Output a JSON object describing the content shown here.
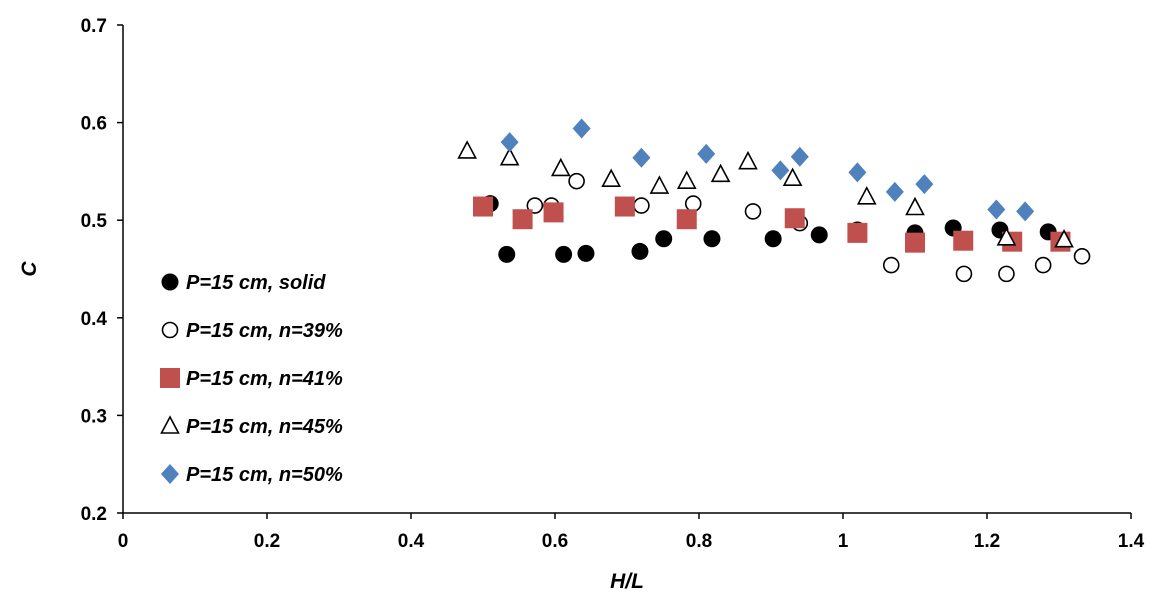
{
  "chart_data": {
    "type": "scatter",
    "title": "",
    "xlabel": "H/L",
    "ylabel": "C",
    "xlim": [
      0,
      1.4
    ],
    "ylim": [
      0.2,
      0.7
    ],
    "xticks": [
      "0",
      "0.2",
      "0.4",
      "0.6",
      "0.8",
      "1",
      "1.2",
      "1.4"
    ],
    "yticks": [
      "0.2",
      "0.3",
      "0.4",
      "0.5",
      "0.6",
      "0.7"
    ],
    "xtick_values": [
      0,
      0.2,
      0.4,
      0.6,
      0.8,
      1.0,
      1.2,
      1.4
    ],
    "ytick_values": [
      0.2,
      0.3,
      0.4,
      0.5,
      0.6,
      0.7
    ],
    "grid": false,
    "legend_position": "left",
    "series": [
      {
        "name": "P=15 cm, solid",
        "marker": "circle-filled",
        "color": "#000000",
        "points": [
          [
            0.51,
            0.517
          ],
          [
            0.533,
            0.465
          ],
          [
            0.612,
            0.465
          ],
          [
            0.643,
            0.466
          ],
          [
            0.718,
            0.468
          ],
          [
            0.751,
            0.481
          ],
          [
            0.818,
            0.481
          ],
          [
            0.903,
            0.481
          ],
          [
            0.967,
            0.485
          ],
          [
            1.02,
            0.49
          ],
          [
            1.1,
            0.487
          ],
          [
            1.153,
            0.492
          ],
          [
            1.218,
            0.49
          ],
          [
            1.285,
            0.488
          ]
        ]
      },
      {
        "name": "P=15 cm, n=39%",
        "marker": "circle-open",
        "color": "#000000",
        "points": [
          [
            0.572,
            0.515
          ],
          [
            0.595,
            0.515
          ],
          [
            0.63,
            0.54
          ],
          [
            0.72,
            0.515
          ],
          [
            0.792,
            0.517
          ],
          [
            0.875,
            0.509
          ],
          [
            0.94,
            0.497
          ],
          [
            1.067,
            0.454
          ],
          [
            1.168,
            0.445
          ],
          [
            1.227,
            0.445
          ],
          [
            1.278,
            0.454
          ],
          [
            1.332,
            0.463
          ]
        ]
      },
      {
        "name": "P=15 cm, n=41%",
        "marker": "square-filled",
        "color": "#C0504D",
        "points": [
          [
            0.5,
            0.514
          ],
          [
            0.555,
            0.501
          ],
          [
            0.598,
            0.508
          ],
          [
            0.697,
            0.514
          ],
          [
            0.783,
            0.501
          ],
          [
            0.933,
            0.502
          ],
          [
            1.02,
            0.487
          ],
          [
            1.1,
            0.477
          ],
          [
            1.167,
            0.479
          ],
          [
            1.235,
            0.478
          ],
          [
            1.302,
            0.478
          ]
        ]
      },
      {
        "name": "P=15 cm, n=45%",
        "marker": "triangle-open",
        "color": "#000000",
        "points": [
          [
            0.478,
            0.571
          ],
          [
            0.537,
            0.564
          ],
          [
            0.608,
            0.553
          ],
          [
            0.678,
            0.542
          ],
          [
            0.745,
            0.535
          ],
          [
            0.783,
            0.54
          ],
          [
            0.83,
            0.547
          ],
          [
            0.868,
            0.56
          ],
          [
            0.93,
            0.543
          ],
          [
            1.033,
            0.524
          ],
          [
            1.1,
            0.513
          ],
          [
            1.227,
            0.482
          ],
          [
            1.307,
            0.48
          ]
        ]
      },
      {
        "name": "P=15 cm, n=50%",
        "marker": "diamond-filled",
        "color": "#4F81BD",
        "points": [
          [
            0.537,
            0.58
          ],
          [
            0.637,
            0.594
          ],
          [
            0.72,
            0.564
          ],
          [
            0.81,
            0.568
          ],
          [
            0.913,
            0.551
          ],
          [
            0.94,
            0.565
          ],
          [
            1.02,
            0.549
          ],
          [
            1.072,
            0.529
          ],
          [
            1.113,
            0.537
          ],
          [
            1.213,
            0.511
          ],
          [
            1.253,
            0.509
          ]
        ]
      }
    ]
  }
}
